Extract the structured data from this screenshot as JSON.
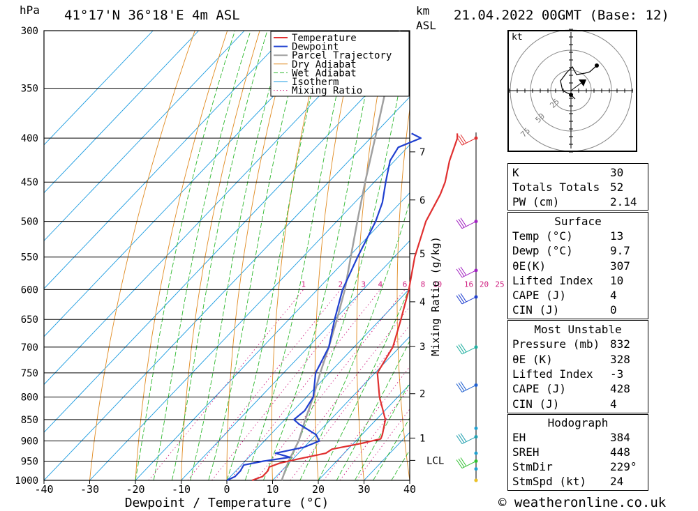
{
  "header": {
    "pressure_unit": "hPa",
    "location": "41°17'N 36°18'E 4m ASL",
    "height_unit": "km",
    "height_ref": "ASL",
    "datetime": "21.04.2022 00GMT (Base: 12)",
    "hodo_unit": "kt"
  },
  "chart_data": {
    "type": "line",
    "title": "41°17'N 36°18'E 4m ASL",
    "xlabel": "Dewpoint / Temperature (°C)",
    "ylabel": "hPa",
    "right_label": "Mixing Ratio (g/kg)",
    "xlim": [
      -40,
      40
    ],
    "ylim": [
      1000,
      300
    ],
    "x_ticks": [
      -40,
      -30,
      -20,
      -10,
      0,
      10,
      20,
      30,
      40
    ],
    "p_levels": [
      300,
      350,
      400,
      450,
      500,
      550,
      600,
      650,
      700,
      750,
      800,
      850,
      900,
      950,
      1000
    ],
    "km_ticks": [
      {
        "label": "7",
        "p": 415
      },
      {
        "label": "6",
        "p": 472
      },
      {
        "label": "5",
        "p": 545
      },
      {
        "label": "4",
        "p": 620
      },
      {
        "label": "3",
        "p": 699
      },
      {
        "label": "2",
        "p": 793
      },
      {
        "label": "1",
        "p": 893
      },
      {
        "label": "LCL",
        "p": 948
      }
    ],
    "mixing_ratios": [
      1,
      2,
      3,
      4,
      6,
      8,
      10,
      16,
      20,
      25
    ],
    "legend": [
      "Temperature",
      "Dewpoint",
      "Parcel Trajectory",
      "Dry Adiabat",
      "Wet Adiabat",
      "Isotherm",
      "Mixing Ratio"
    ],
    "series": [
      {
        "name": "Temperature",
        "color": "#e03030",
        "points": [
          [
            1000,
            5.5
          ],
          [
            990,
            7
          ],
          [
            975,
            7
          ],
          [
            965,
            6.5
          ],
          [
            955,
            8
          ],
          [
            945,
            11
          ],
          [
            930,
            16
          ],
          [
            920,
            16.5
          ],
          [
            905,
            22
          ],
          [
            895,
            25
          ],
          [
            885,
            24.5
          ],
          [
            850,
            22
          ],
          [
            800,
            16
          ],
          [
            750,
            10.5
          ],
          [
            700,
            8.5
          ],
          [
            650,
            4.5
          ],
          [
            600,
            0
          ],
          [
            550,
            -5.5
          ],
          [
            500,
            -10.5
          ],
          [
            465,
            -13
          ],
          [
            450,
            -14.5
          ],
          [
            425,
            -18
          ],
          [
            400,
            -21
          ],
          [
            395,
            -22
          ]
        ]
      },
      {
        "name": "Dewpoint",
        "color": "#2040d0",
        "points": [
          [
            1000,
            0
          ],
          [
            990,
            1
          ],
          [
            975,
            1
          ],
          [
            960,
            0.5
          ],
          [
            950,
            4
          ],
          [
            940,
            9
          ],
          [
            930,
            5
          ],
          [
            915,
            10
          ],
          [
            900,
            12
          ],
          [
            885,
            10
          ],
          [
            860,
            4
          ],
          [
            850,
            2
          ],
          [
            830,
            2.5
          ],
          [
            800,
            1.5
          ],
          [
            750,
            -3
          ],
          [
            700,
            -5.5
          ],
          [
            650,
            -10
          ],
          [
            600,
            -14.5
          ],
          [
            550,
            -18
          ],
          [
            500,
            -21.5
          ],
          [
            475,
            -24
          ],
          [
            450,
            -27.5
          ],
          [
            425,
            -31
          ],
          [
            410,
            -32
          ],
          [
            400,
            -29
          ],
          [
            395,
            -32
          ]
        ]
      },
      {
        "name": "Parcel Trajectory",
        "color": "#a0a0a0",
        "points": [
          [
            1000,
            12
          ],
          [
            950,
            9.5
          ],
          [
            900,
            7.5
          ],
          [
            850,
            4.5
          ],
          [
            800,
            1.5
          ],
          [
            750,
            -2
          ],
          [
            700,
            -5.5
          ],
          [
            650,
            -9.5
          ],
          [
            600,
            -14
          ],
          [
            550,
            -19.5
          ],
          [
            500,
            -25.5
          ],
          [
            450,
            -32
          ],
          [
            400,
            -39
          ],
          [
            350,
            -47
          ],
          [
            300,
            -56
          ]
        ]
      }
    ],
    "wind_barb_levels": [
      400,
      500,
      570,
      612,
      700,
      775,
      890,
      950
    ]
  },
  "hodograph": {
    "rings": [
      "25",
      "50",
      "75"
    ]
  },
  "indices": {
    "top": [
      {
        "label": "K",
        "value": "30"
      },
      {
        "label": "Totals Totals",
        "value": "52"
      },
      {
        "label": "PW (cm)",
        "value": "2.14"
      }
    ],
    "surface": {
      "title": "Surface",
      "rows": [
        {
          "label": "Temp (°C)",
          "value": "13"
        },
        {
          "label": "Dewp (°C)",
          "value": "9.7"
        },
        {
          "label": "θE(K)",
          "value": "307"
        },
        {
          "label": "Lifted Index",
          "value": "10"
        },
        {
          "label": "CAPE (J)",
          "value": "4"
        },
        {
          "label": "CIN (J)",
          "value": "0"
        }
      ]
    },
    "most_unstable": {
      "title": "Most Unstable",
      "rows": [
        {
          "label": "Pressure (mb)",
          "value": "832"
        },
        {
          "label": "θE (K)",
          "value": "328"
        },
        {
          "label": "Lifted Index",
          "value": "-3"
        },
        {
          "label": "CAPE (J)",
          "value": "428"
        },
        {
          "label": "CIN (J)",
          "value": "4"
        }
      ]
    },
    "hodograph": {
      "title": "Hodograph",
      "rows": [
        {
          "label": "EH",
          "value": "384"
        },
        {
          "label": "SREH",
          "value": "448"
        },
        {
          "label": "StmDir",
          "value": "229°"
        },
        {
          "label": "StmSpd (kt)",
          "value": "24"
        }
      ]
    }
  },
  "footer": {
    "copyright": "© weatheronline.co.uk"
  }
}
